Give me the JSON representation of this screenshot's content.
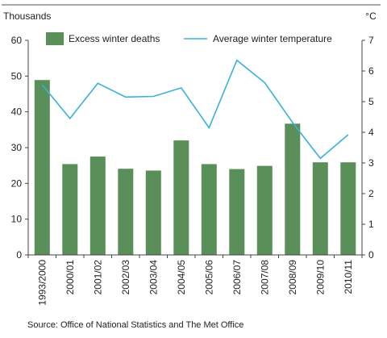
{
  "chart_data": {
    "type": "bar+line",
    "left_axis_unit": "Thousands",
    "right_axis_unit": "°C",
    "categories": [
      "1993/2000",
      "2000/01",
      "2001/02",
      "2002/03",
      "2003/04",
      "2004/05",
      "2005/06",
      "2006/07",
      "2007/08",
      "2008/09",
      "2009/10",
      "2010/11"
    ],
    "series": [
      {
        "name": "Excess winter deaths",
        "type": "bar",
        "axis": "left",
        "color": "#5a8f5a",
        "values": [
          48.9,
          25.4,
          27.5,
          24.1,
          23.6,
          32.0,
          25.4,
          24.0,
          24.9,
          36.7,
          25.9,
          25.9
        ]
      },
      {
        "name": "Average winter temperature",
        "type": "line",
        "axis": "right",
        "color": "#3ab0dc",
        "values": [
          5.55,
          4.45,
          5.6,
          5.15,
          5.17,
          5.45,
          4.15,
          6.35,
          5.62,
          4.32,
          3.15,
          3.92
        ]
      }
    ],
    "left_ylim": [
      0,
      60
    ],
    "left_yticks": [
      0,
      10,
      20,
      30,
      40,
      50,
      60
    ],
    "right_ylim": [
      0,
      7
    ],
    "right_yticks": [
      0,
      1,
      2,
      3,
      4,
      5,
      6,
      7
    ],
    "legend_position": "top",
    "grid": false
  },
  "source_text": "Source: Office of National Statistics and The Met Office"
}
